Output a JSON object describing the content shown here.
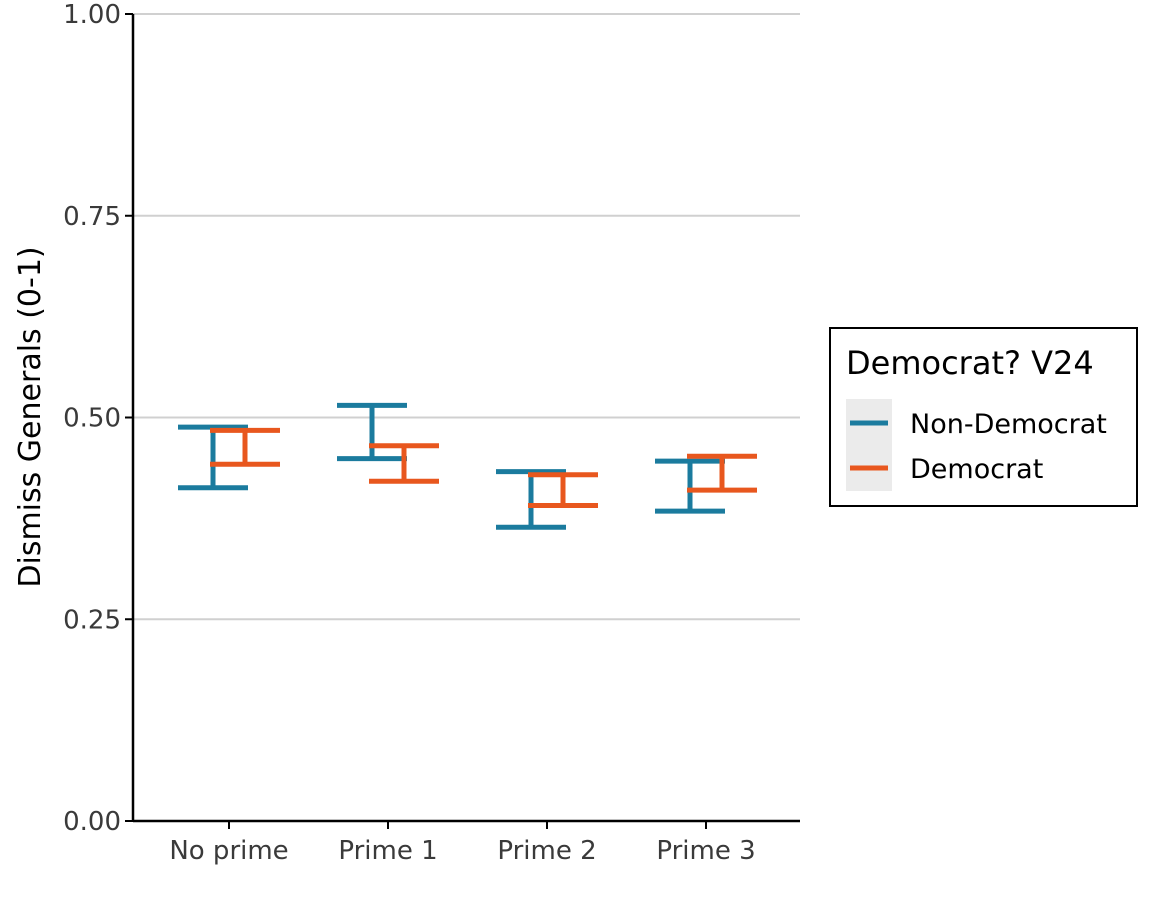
{
  "chart_data": {
    "type": "errorbar",
    "categories": [
      "No prime",
      "Prime 1",
      "Prime 2",
      "Prime 3"
    ],
    "ylabel": "Dismiss Generals (0-1)",
    "xlabel": "",
    "ylim": [
      0,
      1
    ],
    "yticks": [
      "0.00",
      "0.25",
      "0.50",
      "0.75",
      "1.00"
    ],
    "grid": "horizontal",
    "legend": {
      "title": "Democrat? V24",
      "placement": "right"
    },
    "series": [
      {
        "name": "Non-Democrat",
        "color": "#1b7b9e",
        "low": [
          0.413,
          0.449,
          0.364,
          0.384
        ],
        "high": [
          0.488,
          0.515,
          0.433,
          0.446
        ]
      },
      {
        "name": "Democrat",
        "color": "#e8571e",
        "low": [
          0.442,
          0.421,
          0.391,
          0.41
        ],
        "high": [
          0.484,
          0.465,
          0.429,
          0.452
        ]
      }
    ]
  }
}
